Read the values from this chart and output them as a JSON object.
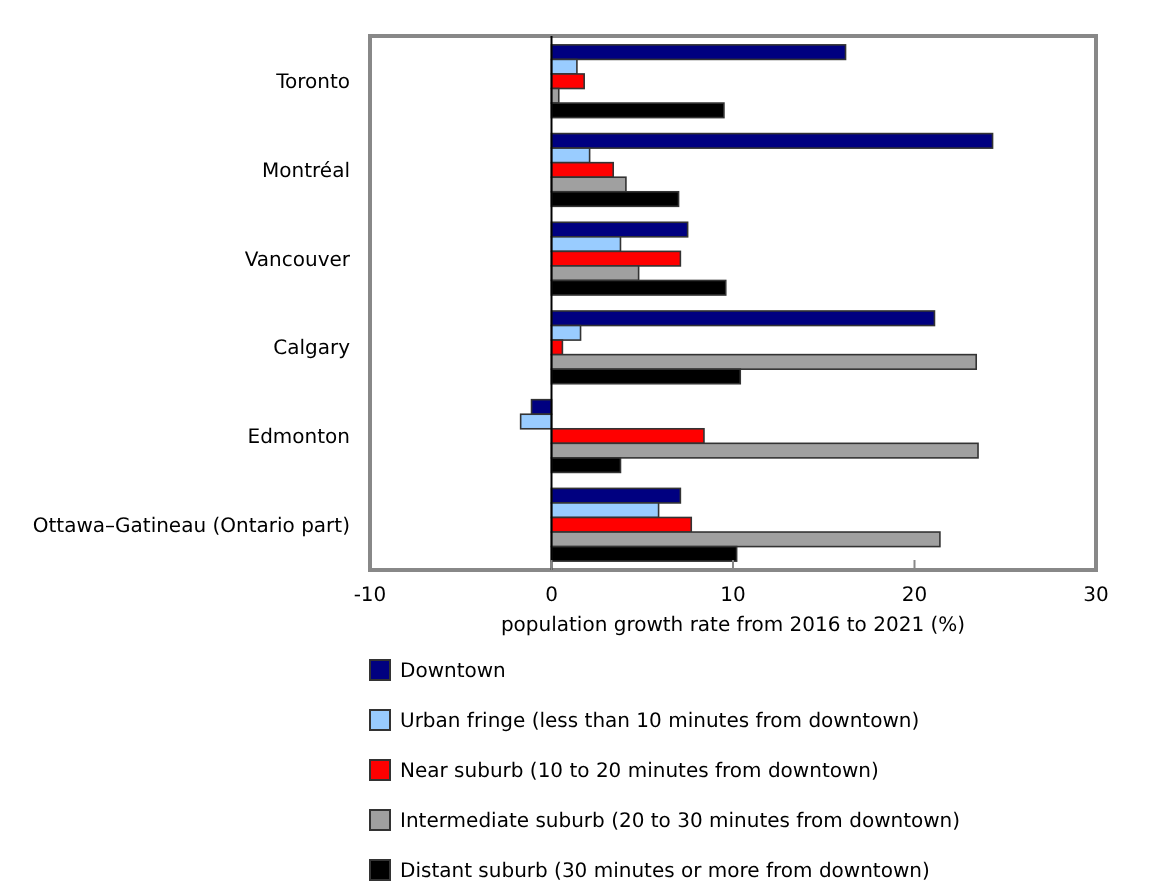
{
  "chart_data": {
    "type": "bar",
    "orientation": "horizontal",
    "xlabel": "population growth rate from 2016 to 2021 (%)",
    "categories": [
      "Toronto",
      "Montréal",
      "Vancouver",
      "Calgary",
      "Edmonton",
      "Ottawa–Gatineau (Ontario part)"
    ],
    "series": [
      {
        "name": "Downtown",
        "color": "#000080",
        "values": [
          16.2,
          24.3,
          7.5,
          21.1,
          -1.1,
          7.1
        ]
      },
      {
        "name": "Urban fringe (less than 10 minutes from downtown)",
        "color": "#99ccff",
        "values": [
          1.4,
          2.1,
          3.8,
          1.6,
          -1.7,
          5.9
        ]
      },
      {
        "name": "Near suburb (10 to 20 minutes from downtown)",
        "color": "#ff0000",
        "values": [
          1.8,
          3.4,
          7.1,
          0.6,
          8.4,
          7.7
        ]
      },
      {
        "name": "Intermediate suburb (20 to 30 minutes from downtown)",
        "color": "#a0a0a0",
        "values": [
          0.4,
          4.1,
          4.8,
          23.4,
          23.5,
          21.4
        ]
      },
      {
        "name": "Distant suburb (30 minutes or more from downtown)",
        "color": "#000000",
        "values": [
          9.5,
          7.0,
          9.6,
          10.4,
          3.8,
          10.2
        ]
      }
    ],
    "xlim": [
      -10,
      30
    ],
    "xticks": [
      -10,
      0,
      10,
      20,
      30
    ],
    "ref_lines": [
      {
        "axis": "x",
        "value": 0,
        "color": "#000000"
      }
    ],
    "legend": "bottom"
  }
}
